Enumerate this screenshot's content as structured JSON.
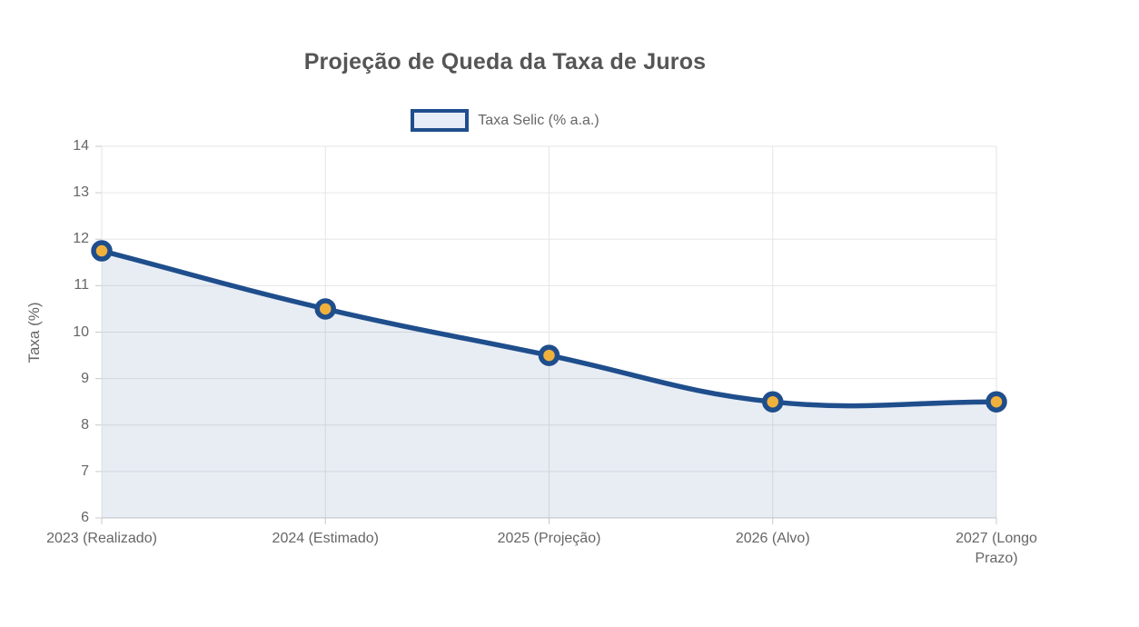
{
  "chart_data": {
    "type": "area",
    "title": "Projeção de Queda da Taxa de Juros",
    "legend": "Taxa Selic (% a.a.)",
    "ylabel": "Taxa (%)",
    "xlabel": "",
    "categories": [
      "2023 (Realizado)",
      "2024 (Estimado)",
      "2025 (Projeção)",
      "2026 (Alvo)",
      "2027 (Longo Prazo)"
    ],
    "series": [
      {
        "name": "Taxa Selic (% a.a.)",
        "values": [
          11.75,
          10.5,
          9.5,
          8.5,
          8.5
        ]
      }
    ],
    "ylim": [
      6,
      14
    ],
    "ytick_step": 1,
    "grid": true,
    "legend_position": "top",
    "line_tension": 0.4,
    "colors": {
      "line": "#1f4e8c",
      "marker_fill": "#f0b13c",
      "area_fill": "rgba(31,78,145,0.10)",
      "legend_fill": "#e7edf6",
      "grid": "#e6e6e6",
      "axis": "#c9c9c9",
      "title_text": "#555555",
      "tick_text": "#666666"
    }
  }
}
